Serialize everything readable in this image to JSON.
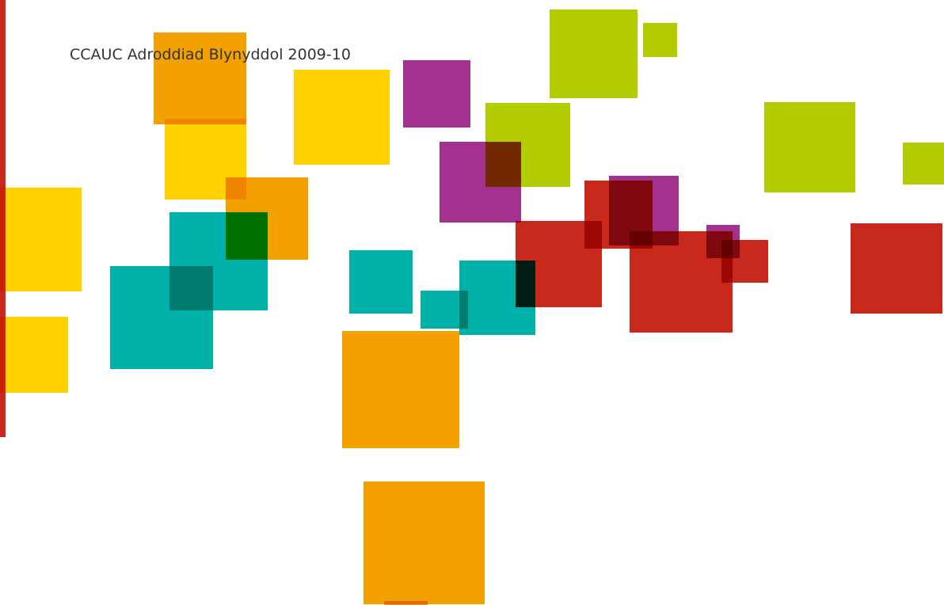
{
  "document": {
    "title": "CCAUC Adroddiad Blynyddol 2009-10"
  },
  "colors": {
    "accent_bar": "#c8291c",
    "orange": "#f2a100",
    "yellow": "#fdd000",
    "lime": "#b3cc00",
    "purple": "#a3328f",
    "teal": "#00b1a9",
    "red": "#c8291c"
  }
}
